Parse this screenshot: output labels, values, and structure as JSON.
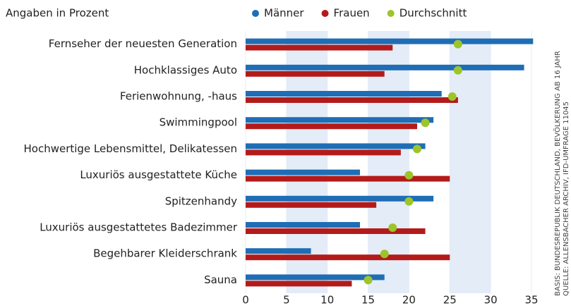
{
  "chart_data": {
    "type": "bar",
    "orientation": "horizontal",
    "subtitle": "Angaben in Prozent",
    "source_note": "BASIS: BUNDESREPUBLIK DEUTSCHLAND, BEVÖLKERUNG AB 16 JAHR",
    "source": "QUELLE: ALLENSBACHER ARCHIV, IFD-UMFRAGE 11045",
    "categories": [
      "Fernseher der neuesten Generation",
      "Hochklassiges Auto",
      "Ferienwohnung, -haus",
      "Swimmingpool",
      "Hochwertige Lebensmittel, Delikatessen",
      "Luxuriös ausgestattete Küche",
      "Spitzenhandy",
      "Luxuriös ausgestattetes Badezimmer",
      "Begehbarer Kleiderschrank",
      "Sauna"
    ],
    "series": [
      {
        "name": "Männer",
        "color": "#1f6db5",
        "values": [
          35.2,
          34.1,
          24,
          23,
          22,
          14,
          23,
          14,
          8,
          17
        ]
      },
      {
        "name": "Frauen",
        "color": "#b31b1b",
        "values": [
          18,
          17,
          26,
          21,
          19,
          25,
          16,
          22,
          25,
          13
        ]
      },
      {
        "name": "Durchschnitt",
        "color": "#9cc52a",
        "marker": "dot",
        "values": [
          26,
          26,
          25.3,
          22,
          21,
          20,
          20,
          18,
          17,
          15
        ]
      }
    ],
    "xlim": [
      0,
      35
    ],
    "xticks": [
      0,
      5,
      10,
      15,
      20,
      25,
      30,
      35
    ],
    "alternating_bands": true
  }
}
